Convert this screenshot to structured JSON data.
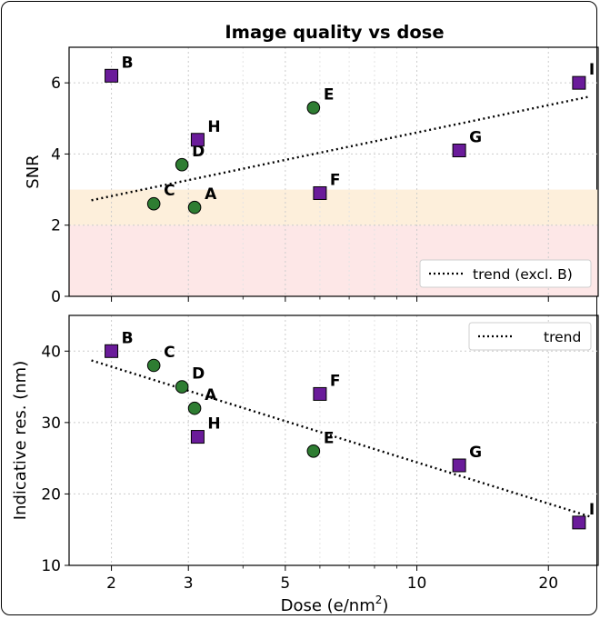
{
  "chart_data": [
    {
      "type": "scatter",
      "title": "Image quality vs dose",
      "xlabel": "",
      "ylabel": "SNR",
      "xscale": "log",
      "xlim": [
        1.6,
        26
      ],
      "ylim": [
        0,
        7
      ],
      "yticks": [
        0,
        2,
        4,
        6
      ],
      "grid": true,
      "bands": [
        {
          "y0": 0,
          "y1": 2,
          "color": "#fde7e7"
        },
        {
          "y0": 2,
          "y1": 3,
          "color": "#fdefdb"
        }
      ],
      "points": [
        {
          "label": "A",
          "x": 3.1,
          "y": 2.5,
          "marker": "circle"
        },
        {
          "label": "B",
          "x": 2.0,
          "y": 6.2,
          "marker": "square"
        },
        {
          "label": "C",
          "x": 2.5,
          "y": 2.6,
          "marker": "circle"
        },
        {
          "label": "D",
          "x": 2.9,
          "y": 3.7,
          "marker": "circle"
        },
        {
          "label": "E",
          "x": 5.8,
          "y": 5.3,
          "marker": "circle"
        },
        {
          "label": "F",
          "x": 6.0,
          "y": 2.9,
          "marker": "square"
        },
        {
          "label": "G",
          "x": 12.5,
          "y": 4.1,
          "marker": "square"
        },
        {
          "label": "H",
          "x": 3.15,
          "y": 4.4,
          "marker": "square"
        },
        {
          "label": "I",
          "x": 23.5,
          "y": 6.0,
          "marker": "square"
        }
      ],
      "trend": {
        "name": "trend (excl. B)",
        "x": [
          1.8,
          25
        ],
        "y": [
          2.7,
          5.62
        ]
      },
      "legend_position": "lower-right"
    },
    {
      "type": "scatter",
      "title": "",
      "xlabel": "Dose (e/nm",
      "xlabel_sup": "2",
      "xlabel_end": ")",
      "ylabel": "Indicative res. (nm)",
      "xscale": "log",
      "xlim": [
        1.6,
        26
      ],
      "ylim": [
        10,
        45
      ],
      "yticks": [
        10,
        20,
        30,
        40
      ],
      "xticks": [
        2,
        3,
        5,
        10,
        20
      ],
      "grid": true,
      "points": [
        {
          "label": "A",
          "x": 3.1,
          "y": 32,
          "marker": "circle"
        },
        {
          "label": "B",
          "x": 2.0,
          "y": 40,
          "marker": "square"
        },
        {
          "label": "C",
          "x": 2.5,
          "y": 38,
          "marker": "circle"
        },
        {
          "label": "D",
          "x": 2.9,
          "y": 35,
          "marker": "circle"
        },
        {
          "label": "E",
          "x": 5.8,
          "y": 26,
          "marker": "circle"
        },
        {
          "label": "F",
          "x": 6.0,
          "y": 34,
          "marker": "square"
        },
        {
          "label": "G",
          "x": 12.5,
          "y": 24,
          "marker": "square"
        },
        {
          "label": "H",
          "x": 3.15,
          "y": 28,
          "marker": "square"
        },
        {
          "label": "I",
          "x": 23.5,
          "y": 16,
          "marker": "square"
        }
      ],
      "trend": {
        "name": "trend",
        "x": [
          1.8,
          25
        ],
        "y": [
          38.7,
          16.8
        ]
      },
      "legend_position": "upper-right"
    }
  ],
  "colors": {
    "circle": "#2e7d32",
    "square": "#6a1b9a",
    "grid": "#cccccc"
  }
}
